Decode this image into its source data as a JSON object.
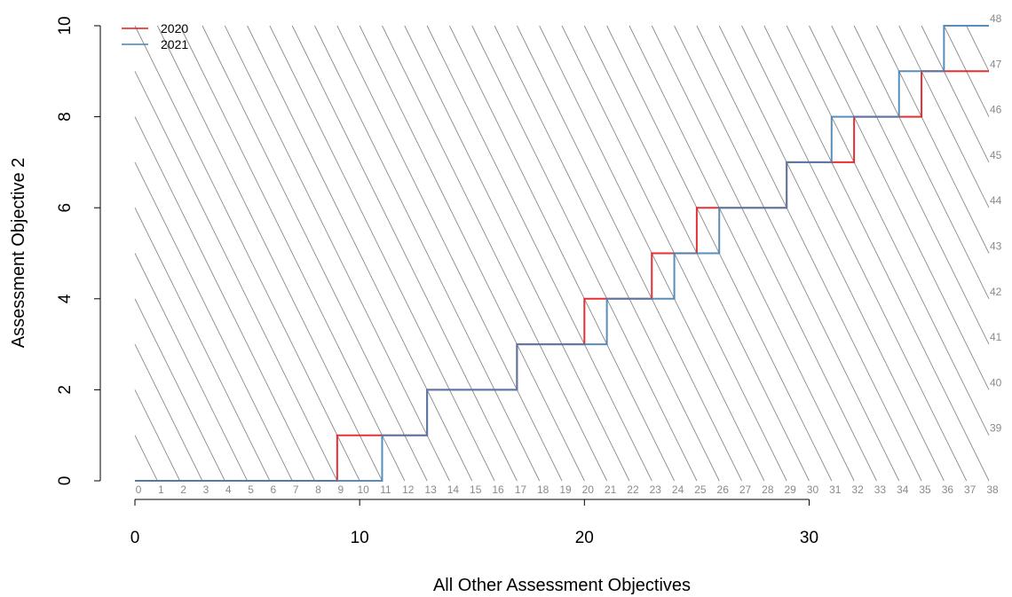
{
  "chart_data": {
    "type": "line",
    "xlabel": "All Other Assessment Objectives",
    "ylabel": "Assessment Objective 2",
    "xlim": [
      0,
      38
    ],
    "ylim": [
      0,
      10
    ],
    "x_ticks": [
      0,
      10,
      20,
      30
    ],
    "y_ticks": [
      0,
      2,
      4,
      6,
      8,
      10
    ],
    "total_labels_bottom": [
      "0",
      "1",
      "2",
      "3",
      "4",
      "5",
      "6",
      "7",
      "8",
      "9",
      "10",
      "11",
      "12",
      "13",
      "14",
      "15",
      "16",
      "17",
      "18",
      "19",
      "20",
      "21",
      "22",
      "23",
      "24",
      "25",
      "26",
      "27",
      "28",
      "29",
      "30",
      "31",
      "32",
      "33",
      "34",
      "35",
      "36",
      "37",
      "38"
    ],
    "total_labels_right": [
      "39",
      "40",
      "41",
      "42",
      "43",
      "44",
      "45",
      "46",
      "47",
      "48"
    ],
    "legend": {
      "position": "top-left"
    },
    "series": [
      {
        "name": "2020",
        "color": "#e41a1c",
        "points": [
          [
            0,
            0
          ],
          [
            9,
            0
          ],
          [
            9,
            1
          ],
          [
            11,
            1
          ],
          [
            13,
            1
          ],
          [
            13,
            2
          ],
          [
            17,
            2
          ],
          [
            17,
            3
          ],
          [
            20,
            3
          ],
          [
            20,
            4
          ],
          [
            23,
            4
          ],
          [
            23,
            5
          ],
          [
            25,
            5
          ],
          [
            25,
            6
          ],
          [
            29,
            6
          ],
          [
            29,
            7
          ],
          [
            32,
            7
          ],
          [
            32,
            8
          ],
          [
            35,
            8
          ],
          [
            35,
            9
          ],
          [
            38,
            9
          ]
        ]
      },
      {
        "name": "2021",
        "color": "#4682b4",
        "points": [
          [
            0,
            0
          ],
          [
            11,
            0
          ],
          [
            11,
            1
          ],
          [
            13,
            1
          ],
          [
            13,
            2
          ],
          [
            17,
            2
          ],
          [
            17,
            3
          ],
          [
            21,
            3
          ],
          [
            21,
            4
          ],
          [
            24,
            4
          ],
          [
            24,
            5
          ],
          [
            26,
            5
          ],
          [
            26,
            6
          ],
          [
            29,
            6
          ],
          [
            29,
            7
          ],
          [
            31,
            7
          ],
          [
            31,
            8
          ],
          [
            34,
            8
          ],
          [
            34,
            9
          ],
          [
            36,
            9
          ],
          [
            36,
            10
          ],
          [
            38,
            10
          ]
        ]
      }
    ]
  }
}
